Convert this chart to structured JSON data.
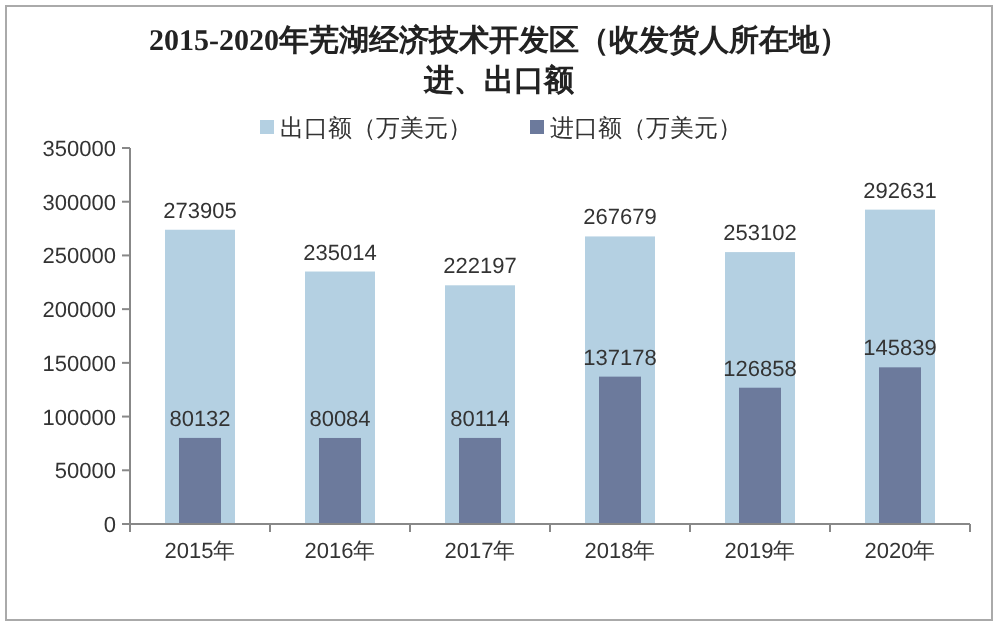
{
  "chart_data": {
    "type": "bar",
    "title": "2015-2020年芜湖经济技术开发区（收发货人所在地）进、出口额",
    "categories": [
      "2015年",
      "2016年",
      "2017年",
      "2018年",
      "2019年",
      "2020年"
    ],
    "series": [
      {
        "name": "出口额（万美元）",
        "color": "#b4d0e2",
        "values": [
          273905,
          235014,
          222197,
          267679,
          253102,
          292631
        ]
      },
      {
        "name": "进口额（万美元）",
        "color": "#6c7a9c",
        "values": [
          80132,
          80084,
          80114,
          137178,
          126858,
          145839
        ]
      }
    ],
    "ylim": [
      0,
      350000
    ],
    "yticks": [
      0,
      50000,
      100000,
      150000,
      200000,
      250000,
      300000,
      350000
    ],
    "data_labels": true,
    "legend": "top",
    "grid": false
  }
}
